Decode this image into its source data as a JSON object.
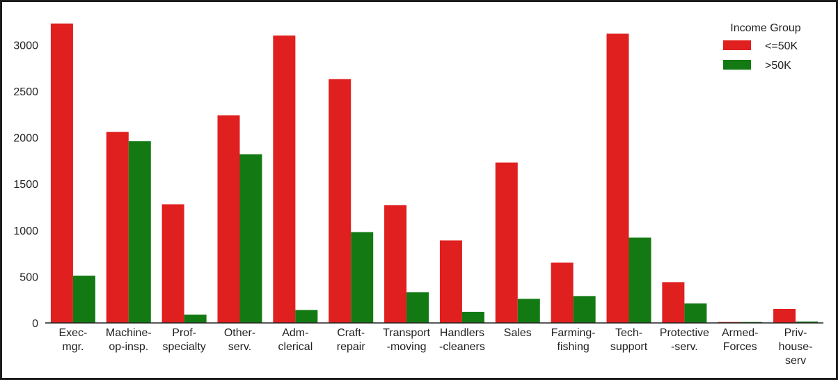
{
  "chart_data": {
    "type": "bar",
    "title": "",
    "xlabel": "",
    "ylabel": "",
    "ylim": [
      0,
      3250
    ],
    "yticks": [
      0,
      500,
      1000,
      1500,
      2000,
      2500,
      3000
    ],
    "categories": [
      [
        "Exec-",
        "mgr."
      ],
      [
        "Machine-",
        "op-insp."
      ],
      [
        "Prof-",
        "specialty"
      ],
      [
        "Other-",
        "serv."
      ],
      [
        "Adm-",
        "clerical"
      ],
      [
        "Craft-",
        "repair"
      ],
      [
        "Transport",
        "-moving"
      ],
      [
        "Handlers",
        "-cleaners"
      ],
      [
        "Sales"
      ],
      [
        "Farming-",
        "fishing"
      ],
      [
        "Tech-",
        "support"
      ],
      [
        "Protective",
        "-serv."
      ],
      [
        "Armed-",
        "Forces"
      ],
      [
        "Priv-",
        "house-",
        "serv"
      ]
    ],
    "series": [
      {
        "name": "<=50K",
        "color": "#e01f1f",
        "values": [
          3230,
          2060,
          1280,
          2240,
          3100,
          2630,
          1270,
          890,
          1730,
          650,
          3120,
          440,
          10,
          150
        ]
      },
      {
        "name": ">50K",
        "color": "#137a13",
        "values": [
          510,
          1960,
          90,
          1820,
          140,
          980,
          330,
          120,
          260,
          290,
          920,
          210,
          10,
          15
        ]
      }
    ],
    "legend": {
      "title": "Income Group",
      "position": "top-right"
    },
    "grid": false
  }
}
